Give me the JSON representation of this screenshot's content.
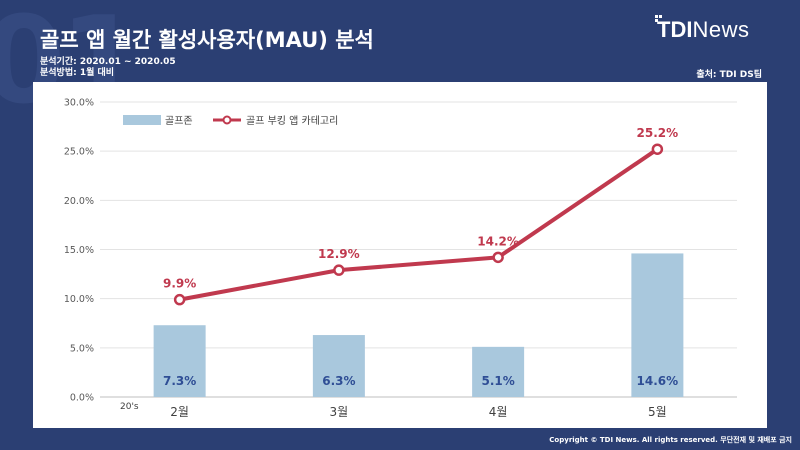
{
  "header": {
    "title": "골프 앱 월간 활성사용자(MAU) 분석",
    "period": "분석기간: 2020.01 ~ 2020.05",
    "method": "분석방법: 1월 대비",
    "source": "출처: TDI DS팀",
    "logo_bold": "TDI",
    "logo_light": "News",
    "bg_digits": "01"
  },
  "footer": {
    "copyright": "Copyright © TDI News. All rights reserved. 무단전재 및 재배포 금지"
  },
  "colors": {
    "background": "#2b3f73",
    "bar": "#a9c8dd",
    "bar_label": "#2f4e95",
    "line": "#c0394e"
  },
  "chart_data": {
    "type": "bar",
    "categories": [
      "2월",
      "3월",
      "4월",
      "5월"
    ],
    "y_tick_labels": [
      "0.0%",
      "5.0%",
      "10.0%",
      "15.0%",
      "20.0%",
      "25.0%",
      "30.0%"
    ],
    "ylim": [
      0,
      30
    ],
    "grid": true,
    "legend_position": "top-left",
    "corner_label": "20's",
    "series": [
      {
        "name": "골프존",
        "type": "bar",
        "values": [
          7.3,
          6.3,
          5.1,
          14.6
        ],
        "labels": [
          "7.3%",
          "6.3%",
          "5.1%",
          "14.6%"
        ]
      },
      {
        "name": "골프 부킹 앱 카테고리",
        "type": "line",
        "values": [
          9.9,
          12.9,
          14.2,
          25.2
        ],
        "labels": [
          "9.9%",
          "12.9%",
          "14.2%",
          "25.2%"
        ]
      }
    ]
  }
}
